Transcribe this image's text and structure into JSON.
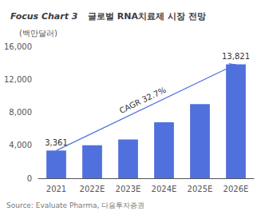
{
  "chart_data": {
    "type": "bar",
    "title": "Focus Chart 3",
    "subtitle": "글로벌 RNA치료제 시장 전망",
    "ylabel": "(백만달러)",
    "source": "Source: Evaluate Pharma, 다음투자증권",
    "categories": [
      "2021",
      "2022E",
      "2023E",
      "2024E",
      "2025E",
      "2026E"
    ],
    "values": [
      3361,
      4000,
      4700,
      6800,
      9000,
      13821
    ],
    "ylim": [
      0,
      16000
    ],
    "yticks": [
      0,
      {
        "value": 4000,
        "label": "4,000"
      },
      {
        "value": 8000,
        "label": "8,000"
      },
      {
        "value": 12000,
        "label": "12,000"
      },
      {
        "value": 16000,
        "label": "16,000"
      }
    ],
    "grid": false,
    "annotations": [
      {
        "text": "3,361",
        "category": "2021"
      },
      {
        "text": "13,821",
        "category": "2026E"
      },
      {
        "text": "CAGR 32.7%",
        "from": "2021",
        "to": "2026E"
      }
    ]
  }
}
